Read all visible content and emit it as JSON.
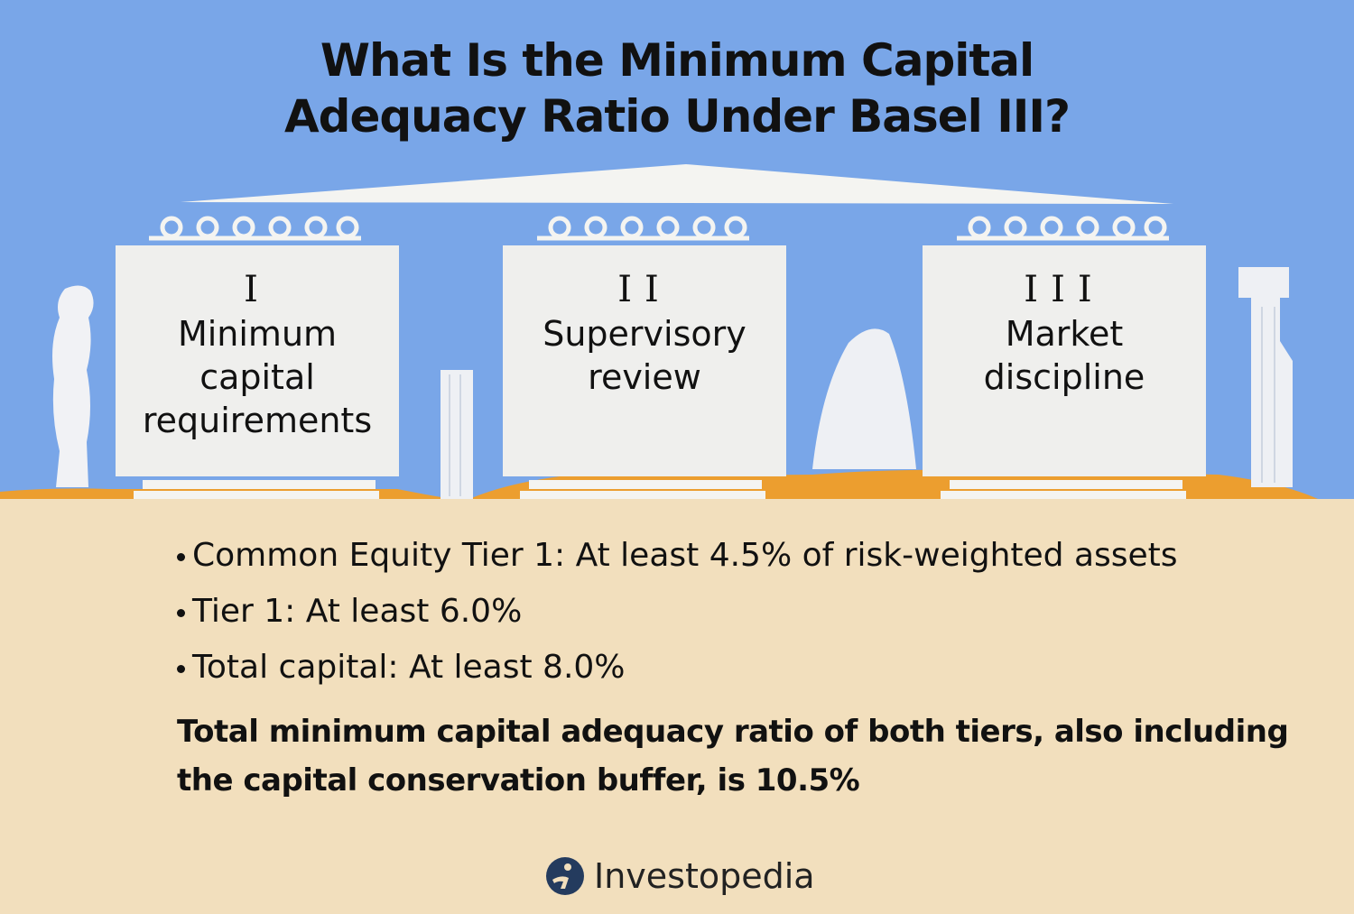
{
  "title": {
    "line1": "What Is the Minimum Capital",
    "line2": "Adequacy Ratio Under Basel III?"
  },
  "pillars": [
    {
      "numeral": "I",
      "lines": [
        "Minimum",
        "capital",
        "requirements"
      ]
    },
    {
      "numeral": "II",
      "lines": [
        "Supervisory",
        "review"
      ]
    },
    {
      "numeral": "III",
      "lines": [
        "Market",
        "discipline"
      ]
    }
  ],
  "bullets": [
    "Common Equity Tier 1: At least 4.5% of risk-weighted assets",
    "Tier 1: At least 6.0%",
    "Total capital: At least 8.0%"
  ],
  "summary": "Total minimum capital adequacy ratio of both tiers, also including the capital conservation buffer, is 10.5%",
  "brand": {
    "name": "Investopedia",
    "icon": "investopedia-logo-icon"
  },
  "colors": {
    "sky": "#79a6e8",
    "ground": "#f2dfbd",
    "sand": "#ec9e2f",
    "stone": "#efefed"
  }
}
